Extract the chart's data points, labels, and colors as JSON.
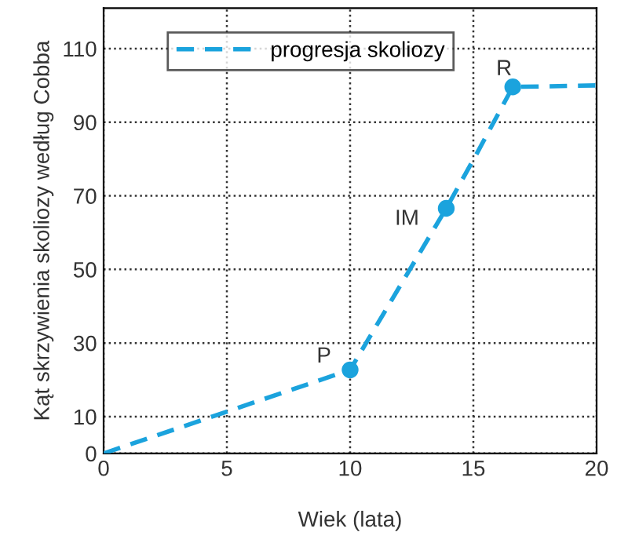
{
  "chart_data": {
    "type": "line",
    "xlabel": "Wiek (lata)",
    "ylabel": "Kąt skrzywienia skoliozy według Cobba",
    "series": [
      {
        "name": "progresja skoliozy",
        "color": "#1ba3dd",
        "x": [
          0,
          10,
          13.9,
          15.1,
          16.6,
          20
        ],
        "values": [
          0,
          22.7,
          66.6,
          81,
          99.6,
          100
        ],
        "line_style": "dashed",
        "marker": "none"
      },
      {
        "type": "scatter",
        "color": "#1ba3dd",
        "x": [
          10,
          13.9,
          16.6
        ],
        "values": [
          22.7,
          66.6,
          99.6
        ],
        "marker": "circle"
      }
    ],
    "annotations": [
      {
        "text": "P",
        "x": 10,
        "y": 22.7
      },
      {
        "text": "IM",
        "x": 13.9,
        "y": 66.6
      },
      {
        "text": "R",
        "x": 16.6,
        "y": 99.6
      }
    ],
    "xlim": [
      0,
      20
    ],
    "xticks": [
      0,
      5,
      10,
      15,
      20
    ],
    "ylim": [
      0,
      121
    ],
    "yticks": [
      0,
      10,
      30,
      50,
      70,
      90,
      110
    ],
    "grid": true,
    "legend": "top"
  }
}
